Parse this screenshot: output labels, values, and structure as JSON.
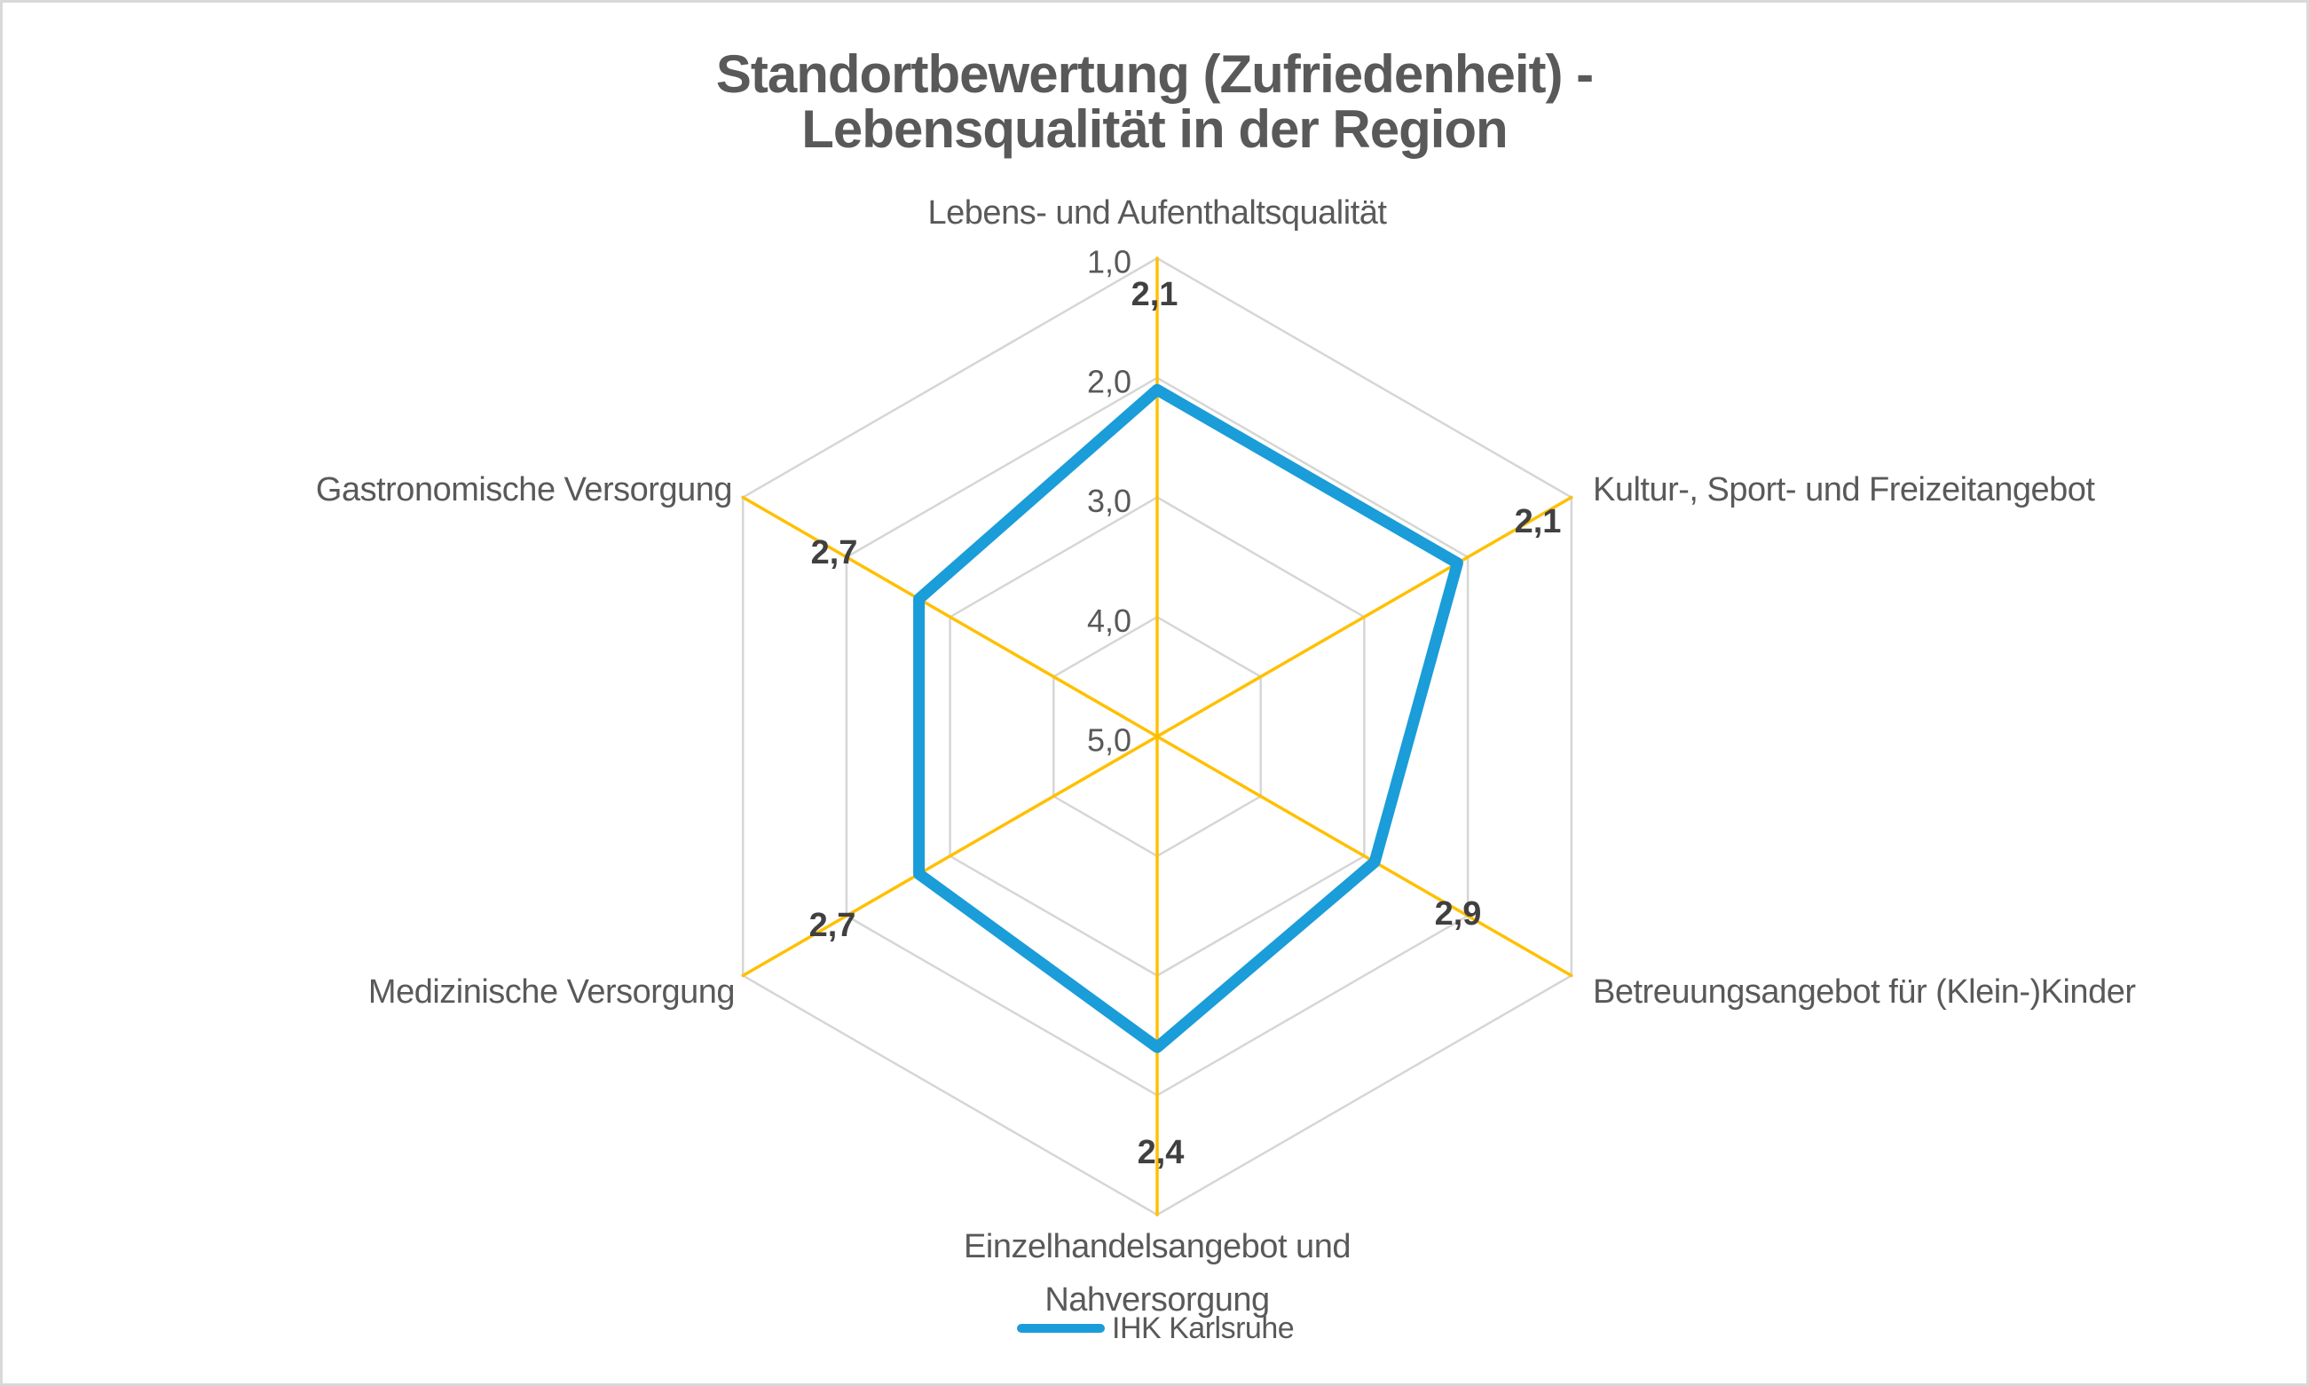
{
  "window": {
    "background": "#ffffff",
    "border_color": "#d9d9d9"
  },
  "title": {
    "lines": [
      "Standortbewertung (Zufriedenheit) -",
      "Lebensqualität in der Region"
    ]
  },
  "legend": {
    "series_label": "IHK Karlsruhe"
  },
  "colors": {
    "series": "#1a9dd9",
    "axis_lines": "#ffc000",
    "gridlines": "#d6d6d6",
    "label_text": "#595959",
    "data_label_text": "#404040"
  },
  "chart_data": {
    "type": "radar",
    "title": "Standortbewertung (Zufriedenheit) - Lebensqualität in der Region",
    "categories": [
      "Lebens- und Aufenthaltsqualität",
      "Kultur-, Sport- und Freizeitangebot",
      "Betreuungsangebot für (Klein-)Kinder",
      "Einzelhandelsangebot und Nahversorgung",
      "Medizinische Versorgung",
      "Gastronomische Versorgung"
    ],
    "category_label_lines": [
      [
        "Lebens- und Aufenthaltsqualität"
      ],
      [
        "Kultur-, Sport- und Freizeitangebot"
      ],
      [
        "Betreuungsangebot für (Klein-)Kinder"
      ],
      [
        "Einzelhandelsangebot und",
        "Nahversorgung"
      ],
      [
        "Medizinische Versorgung"
      ],
      [
        "Gastronomische Versorgung"
      ]
    ],
    "series": [
      {
        "name": "IHK Karlsruhe",
        "values": [
          2.1,
          2.1,
          2.9,
          2.4,
          2.7,
          2.7
        ],
        "data_labels": [
          "2,1",
          "2,1",
          "2,9",
          "2,4",
          "2,7",
          "2,7"
        ]
      }
    ],
    "axis": {
      "min": 1,
      "max": 5,
      "reversed": true,
      "tick_values": [
        1,
        2,
        3,
        4,
        5
      ],
      "tick_labels": [
        "1,0",
        "2,0",
        "3,0",
        "4,0",
        "5,0"
      ]
    },
    "grid": true,
    "legend_position": "bottom"
  }
}
